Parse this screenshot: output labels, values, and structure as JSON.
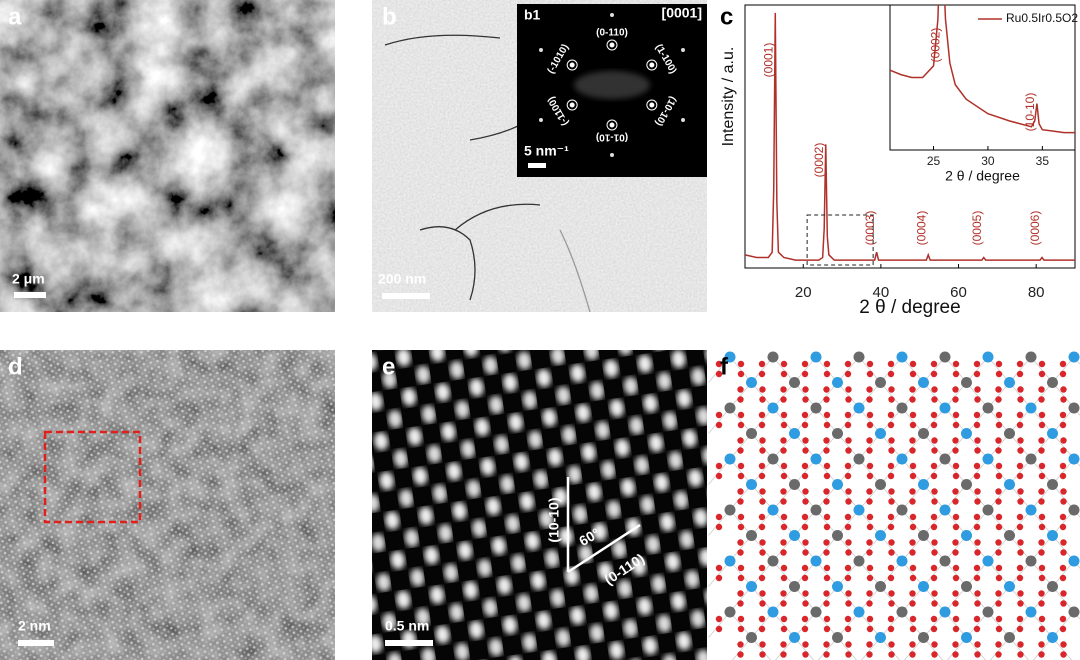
{
  "panels": [
    {
      "label": "a",
      "scale_bar": "2 μm"
    },
    {
      "label": "b",
      "scale_bar": "200 nm",
      "inset": {
        "label": "b1",
        "zone_axis": "[0001]",
        "scale_bar": "5 nm⁻¹",
        "spot_labels": [
          "(1-100)",
          "(0-110)",
          "(-1010)",
          "(-1100)",
          "(01-10)",
          "(10-10)"
        ]
      }
    },
    {
      "label": "c"
    },
    {
      "label": "d",
      "scale_bar": "2 nm"
    },
    {
      "label": "e",
      "scale_bar": "0.5 nm",
      "annotations": [
        "(10-10)",
        "60°",
        "(0-110)"
      ]
    },
    {
      "label": "f"
    }
  ],
  "chart_data": [
    {
      "type": "line",
      "x_label": "2 θ / degree",
      "y_label": "Intensity / a.u.",
      "xlim": [
        5,
        90
      ],
      "xticks": [
        20,
        40,
        60,
        80
      ],
      "ylim": [
        0,
        100
      ],
      "x": [
        5,
        8,
        10,
        11,
        12,
        12.4,
        12.8,
        13.2,
        13.6,
        15,
        18,
        22,
        24,
        25,
        25.4,
        25.8,
        26.2,
        26.6,
        28,
        32,
        36,
        38.4,
        38.9,
        39.4,
        45,
        51.7,
        52.2,
        52.7,
        60,
        66,
        66.5,
        67,
        75,
        81,
        81.5,
        82,
        90
      ],
      "series": [
        {
          "color": "#b0302a",
          "values": [
            5,
            4,
            4,
            4,
            6,
            30,
            97,
            25,
            6,
            4,
            3,
            3,
            3,
            4,
            15,
            47,
            12,
            5,
            3,
            3,
            3,
            3,
            6,
            3,
            3,
            3,
            5,
            3,
            3,
            3,
            4,
            3,
            3,
            3,
            4,
            3,
            3
          ]
        }
      ],
      "peak_labels": [
        {
          "x": 12.8,
          "label": "(0001)"
        },
        {
          "x": 25.8,
          "label": "(0002)"
        },
        {
          "x": 38.9,
          "label": "(0003)"
        },
        {
          "x": 52.2,
          "label": "(0004)"
        },
        {
          "x": 66.5,
          "label": "(0005)"
        },
        {
          "x": 81.5,
          "label": "(0006)"
        }
      ]
    },
    {
      "type": "line",
      "x_label": "2 θ / degree",
      "xlim": [
        21,
        38
      ],
      "xticks": [
        25,
        30,
        35
      ],
      "ylim": [
        0,
        100
      ],
      "x": [
        21,
        22,
        23,
        24,
        25,
        25.4,
        25.7,
        26.1,
        26.5,
        27,
        28,
        30,
        32,
        34,
        34.3,
        34.5,
        34.7,
        35,
        36,
        37,
        38
      ],
      "series": [
        {
          "name": "Ru0.5Ir0.5O2",
          "color": "#b0302a",
          "values": [
            55,
            52,
            50,
            50,
            58,
            90,
            160,
            90,
            60,
            45,
            35,
            25,
            20,
            16,
            20,
            32,
            18,
            14,
            13,
            12,
            12
          ]
        }
      ],
      "peak_labels": [
        {
          "x": 25.8,
          "label": "(0002)"
        },
        {
          "x": 34.5,
          "label": "(10-10)"
        }
      ]
    }
  ]
}
